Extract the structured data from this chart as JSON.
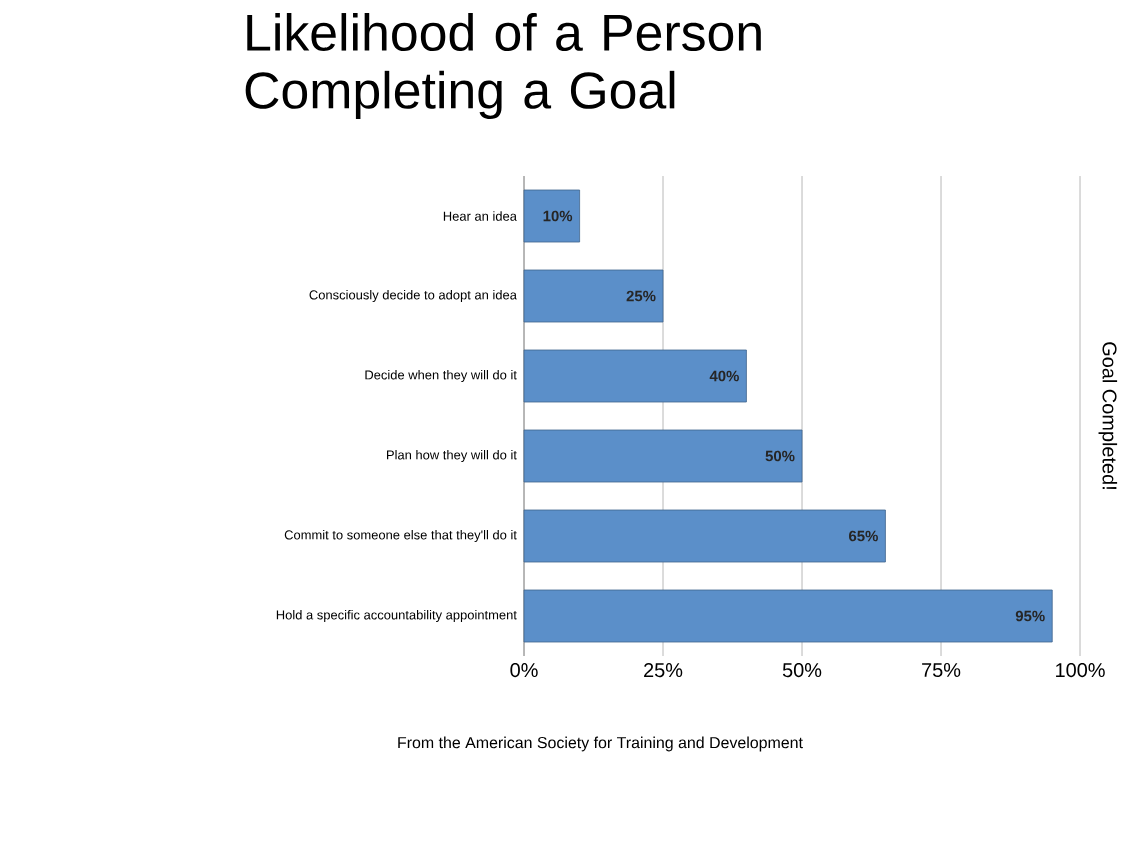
{
  "chart_data": {
    "type": "bar",
    "orientation": "horizontal",
    "title": "Likelihood of a Person Completing a Goal",
    "ylabel": "Goal Completed!",
    "categories": [
      "Hear an idea",
      "Consciously decide to adopt an idea",
      "Decide when they will do it",
      "Plan how they will do it",
      "Commit to someone else that they'll do it",
      "Hold a specific accountability appointment"
    ],
    "values": [
      10,
      25,
      40,
      50,
      65,
      95
    ],
    "value_labels": [
      "10%",
      "25%",
      "40%",
      "50%",
      "65%",
      "95%"
    ],
    "color": "#5b8fc9",
    "xlim": [
      0,
      100
    ],
    "xticks": [
      {
        "value": 0,
        "label": "0%"
      },
      {
        "value": 25,
        "label": "25%"
      },
      {
        "value": 50,
        "label": "50%"
      },
      {
        "value": 75,
        "label": "75%"
      },
      {
        "value": 100,
        "label": "100%"
      }
    ],
    "grid": "x",
    "annotations": [
      "From the American Society for Training and Development"
    ]
  }
}
